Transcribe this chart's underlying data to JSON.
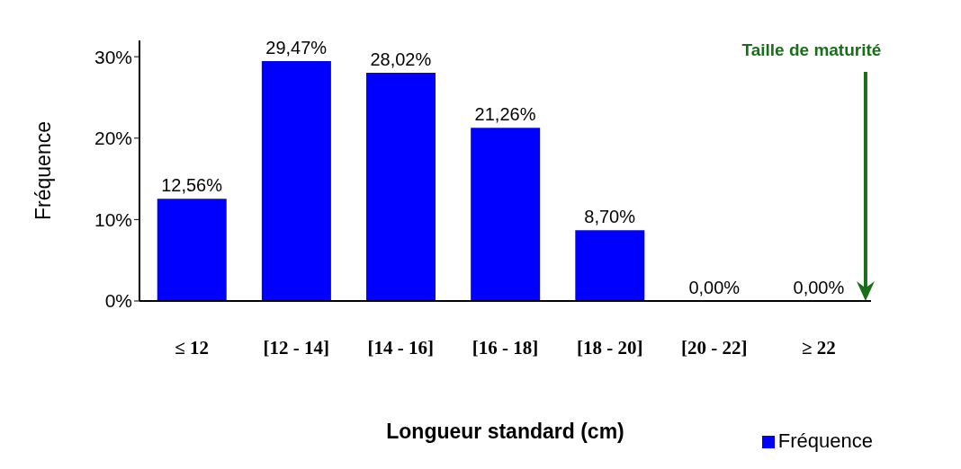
{
  "chart_data": {
    "type": "bar",
    "xlabel": "Longueur standard (cm)",
    "ylabel": "Fréquence",
    "categories": [
      "≤ 12",
      "[12 - 14]",
      "[14 - 16]",
      "[16 - 18]",
      "[18 - 20]",
      "[20 - 22]",
      "≥ 22"
    ],
    "series": [
      {
        "name": "Fréquence",
        "color": "#0000ff",
        "values": [
          12.56,
          29.47,
          28.02,
          21.26,
          8.7,
          0,
          0
        ],
        "value_labels": [
          "12,56%",
          "29,47%",
          "28,02%",
          "21,26%",
          "8,70%",
          "0,00%",
          "0,00%"
        ]
      }
    ],
    "ylim": [
      0,
      32
    ],
    "yticks": [
      {
        "value": 0,
        "label": "0%"
      },
      {
        "value": 10,
        "label": "10%"
      },
      {
        "value": 20,
        "label": "20%"
      },
      {
        "value": 30,
        "label": "30%"
      }
    ],
    "grid": false,
    "legend": "bottom right",
    "annotations": [
      "Taille de maturité"
    ]
  }
}
